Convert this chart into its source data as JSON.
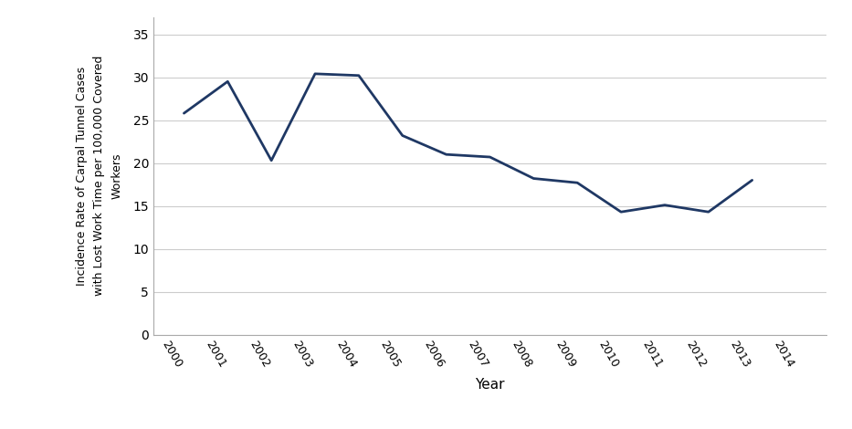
{
  "years": [
    2000,
    2001,
    2002,
    2003,
    2004,
    2005,
    2006,
    2007,
    2008,
    2009,
    2010,
    2011,
    2012,
    2013,
    2014
  ],
  "values": [
    25.8,
    29.5,
    20.3,
    30.4,
    30.2,
    23.2,
    21.0,
    20.7,
    18.2,
    17.7,
    14.3,
    15.1,
    14.3,
    18.0,
    null
  ],
  "line_color": "#1F3864",
  "line_width": 2.0,
  "ylabel": "Incidence Rate of Carpal Tunnel Cases\nwith Lost Work Time per 100,000 Covered\nWorkers",
  "xlabel": "Year",
  "ylim": [
    0,
    37
  ],
  "yticks": [
    0,
    5,
    10,
    15,
    20,
    25,
    30,
    35
  ],
  "background_color": "#ffffff",
  "grid_color": "#cccccc",
  "title": "",
  "tick_rotation": -60,
  "figsize": [
    9.33,
    4.7
  ],
  "dpi": 100
}
